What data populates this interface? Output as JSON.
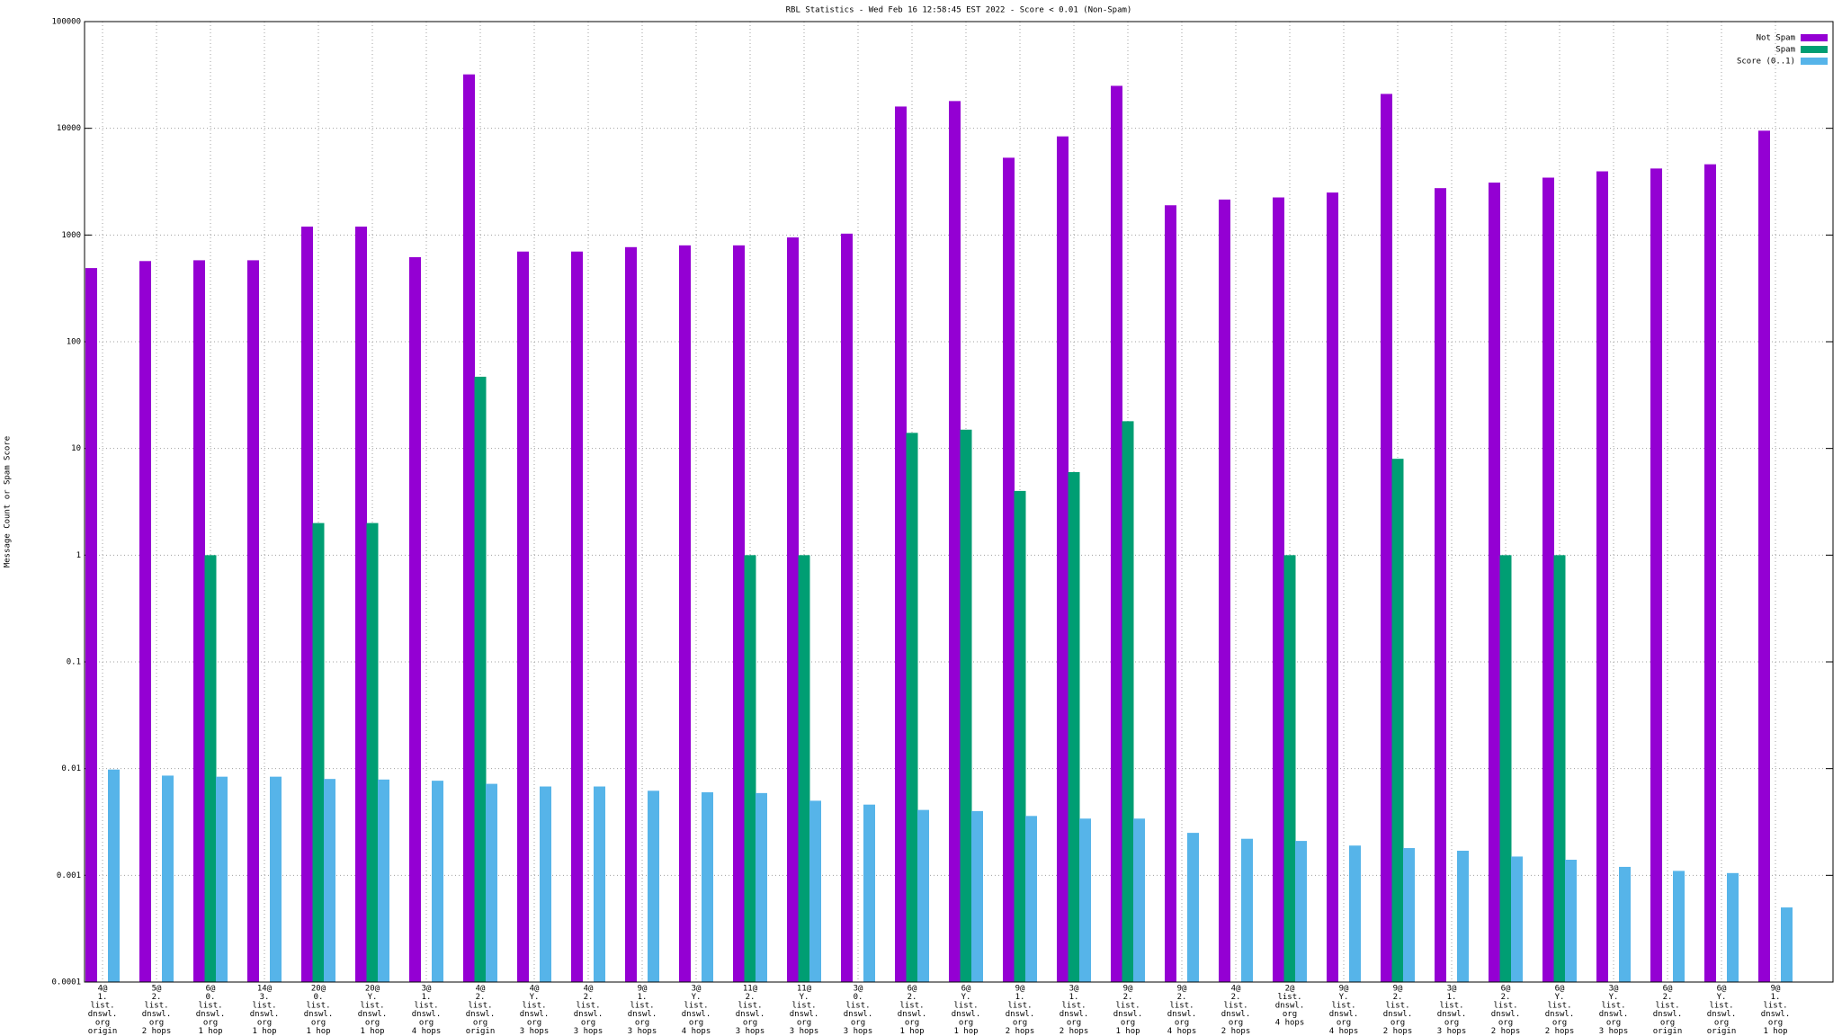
{
  "chart_data": {
    "type": "bar",
    "log_scale": true,
    "grid": true,
    "legend": "top-right",
    "title": "RBL Statistics - Wed Feb 16 12:58:45 EST 2022 - Score < 0.01 (Non-Spam)",
    "ylabel": "Message Count or Spam Score",
    "categories": [
      [
        "4@",
        "1.",
        "list.",
        "dnswl.",
        "org",
        "origin"
      ],
      [
        "5@",
        "2.",
        "list.",
        "dnswl.",
        "org",
        "2 hops"
      ],
      [
        "6@",
        "0.",
        "list.",
        "dnswl.",
        "org",
        "1 hop"
      ],
      [
        "14@",
        "3.",
        "list.",
        "dnswl.",
        "org",
        "1 hop"
      ],
      [
        "20@",
        "0.",
        "list.",
        "dnswl.",
        "org",
        "1 hop"
      ],
      [
        "20@",
        "Y.",
        "list.",
        "dnswl.",
        "org",
        "1 hop"
      ],
      [
        "3@",
        "1.",
        "list.",
        "dnswl.",
        "org",
        "4 hops"
      ],
      [
        "4@",
        "2.",
        "list.",
        "dnswl.",
        "org",
        "origin"
      ],
      [
        "4@",
        "Y.",
        "list.",
        "dnswl.",
        "org",
        "3 hops"
      ],
      [
        "4@",
        "2.",
        "list.",
        "dnswl.",
        "org",
        "3 hops"
      ],
      [
        "9@",
        "1.",
        "list.",
        "dnswl.",
        "org",
        "3 hops"
      ],
      [
        "3@",
        "Y.",
        "list.",
        "dnswl.",
        "org",
        "4 hops"
      ],
      [
        "11@",
        "2.",
        "list.",
        "dnswl.",
        "org",
        "3 hops"
      ],
      [
        "11@",
        "Y.",
        "list.",
        "dnswl.",
        "org",
        "3 hops"
      ],
      [
        "3@",
        "0.",
        "list.",
        "dnswl.",
        "org",
        "3 hops"
      ],
      [
        "6@",
        "2.",
        "list.",
        "dnswl.",
        "org",
        "1 hop"
      ],
      [
        "6@",
        "Y.",
        "list.",
        "dnswl.",
        "org",
        "1 hop"
      ],
      [
        "9@",
        "1.",
        "list.",
        "dnswl.",
        "org",
        "2 hops"
      ],
      [
        "3@",
        "1.",
        "list.",
        "dnswl.",
        "org",
        "2 hops"
      ],
      [
        "9@",
        "2.",
        "list.",
        "dnswl.",
        "org",
        "1 hop"
      ],
      [
        "9@",
        "2.",
        "list.",
        "dnswl.",
        "org",
        "4 hops"
      ],
      [
        "4@",
        "2.",
        "list.",
        "dnswl.",
        "org",
        "2 hops"
      ],
      [
        "2@",
        "list.",
        "dnswl.",
        "org",
        "4 hops"
      ],
      [
        "9@",
        "Y.",
        "list.",
        "dnswl.",
        "org",
        "4 hops"
      ],
      [
        "9@",
        "2.",
        "list.",
        "dnswl.",
        "org",
        "2 hops"
      ],
      [
        "3@",
        "1.",
        "list.",
        "dnswl.",
        "org",
        "3 hops"
      ],
      [
        "6@",
        "2.",
        "list.",
        "dnswl.",
        "org",
        "2 hops"
      ],
      [
        "6@",
        "Y.",
        "list.",
        "dnswl.",
        "org",
        "2 hops"
      ],
      [
        "3@",
        "Y.",
        "list.",
        "dnswl.",
        "org",
        "3 hops"
      ],
      [
        "6@",
        "2.",
        "list.",
        "dnswl.",
        "org",
        "origin"
      ],
      [
        "6@",
        "Y.",
        "list.",
        "dnswl.",
        "org",
        "origin"
      ],
      [
        "9@",
        "1.",
        "list.",
        "dnswl.",
        "org",
        "1 hop"
      ]
    ],
    "series": [
      {
        "name": "Not Spam",
        "color": "#9400d3",
        "values": [
          490,
          570,
          580,
          580,
          1200,
          1200,
          620,
          32000,
          700,
          700,
          770,
          800,
          800,
          950,
          1030,
          16000,
          18000,
          5300,
          8400,
          25000,
          1900,
          2150,
          2250,
          2500,
          21000,
          2750,
          3100,
          3450,
          3950,
          4200,
          4600,
          9500
        ]
      },
      {
        "name": "Spam",
        "color": "#009e73",
        "values": [
          null,
          null,
          1,
          null,
          2,
          2,
          null,
          47,
          null,
          null,
          null,
          null,
          1,
          1,
          null,
          14,
          15,
          4,
          6,
          18,
          null,
          null,
          1,
          null,
          8,
          null,
          1,
          1,
          null,
          null,
          null,
          null
        ]
      },
      {
        "name": "Score (0..1)",
        "color": "#56b4e9",
        "values": [
          0.0098,
          0.0086,
          0.0084,
          0.0084,
          0.008,
          0.0079,
          0.0077,
          0.0072,
          0.0068,
          0.0068,
          0.0062,
          0.006,
          0.0059,
          0.005,
          0.0046,
          0.0041,
          0.004,
          0.0036,
          0.0034,
          0.0034,
          0.0025,
          0.0022,
          0.0021,
          0.0019,
          0.0018,
          0.0017,
          0.0015,
          0.0014,
          0.0012,
          0.0011,
          0.00105,
          0.0005
        ]
      }
    ],
    "ylim": [
      0.0001,
      100000
    ],
    "yticks": [
      0.0001,
      0.001,
      0.01,
      0.1,
      1,
      10,
      100,
      1000,
      10000,
      100000
    ]
  }
}
